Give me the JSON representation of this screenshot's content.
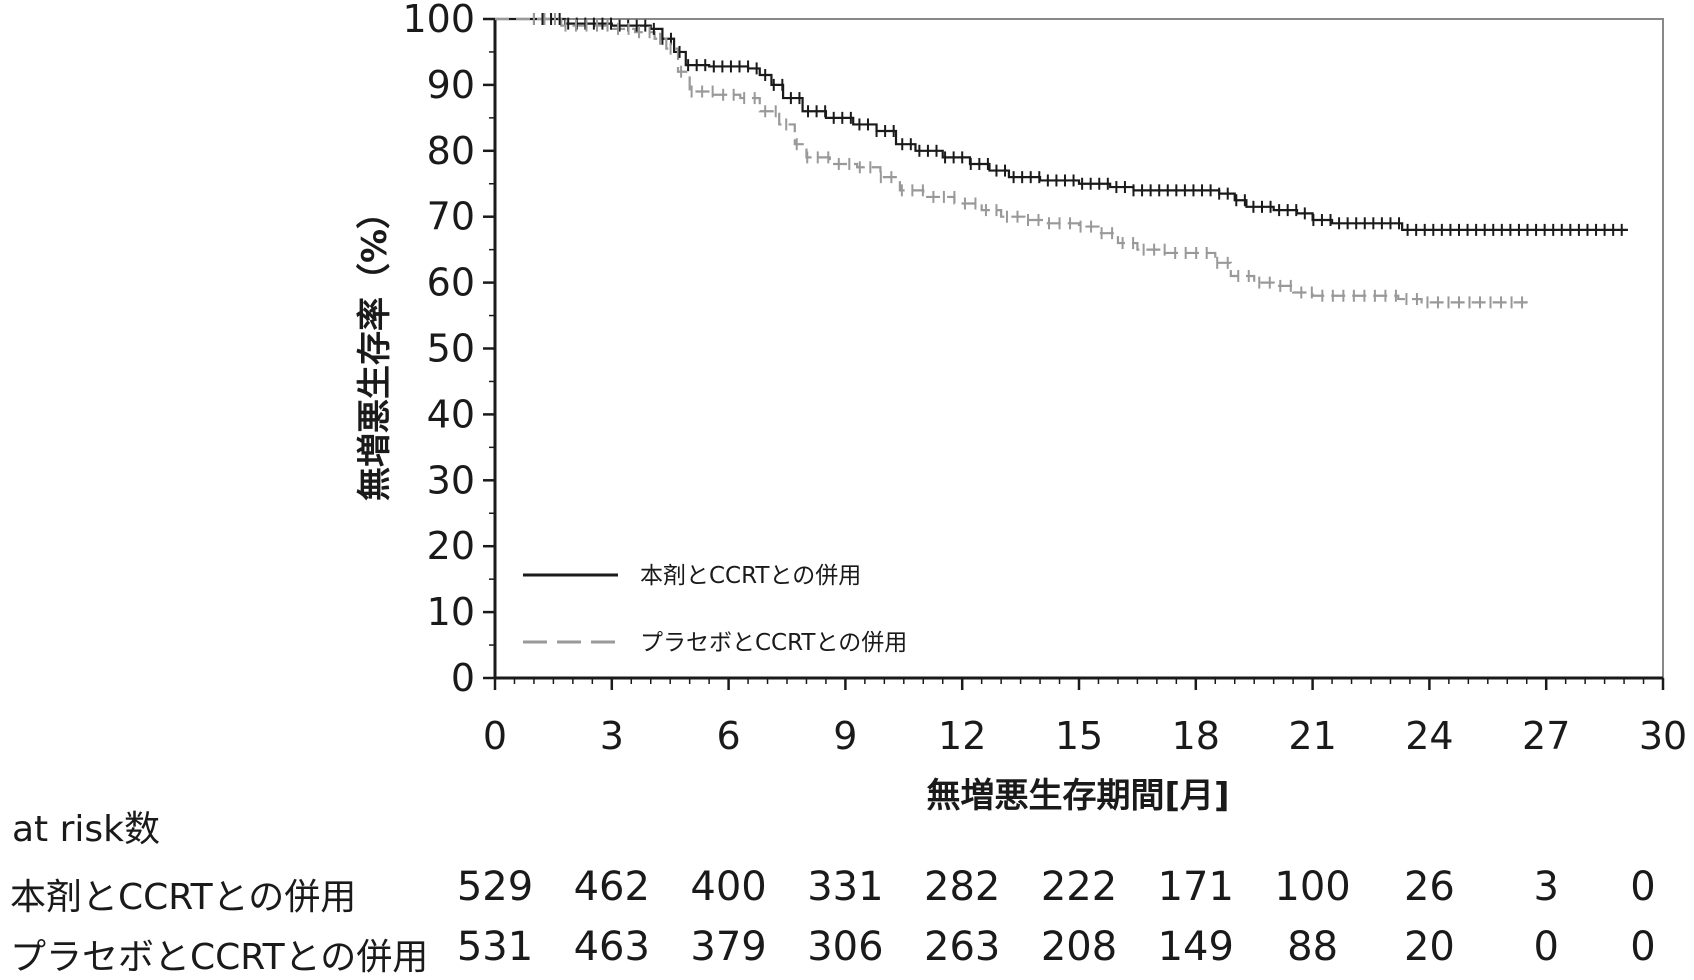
{
  "chart_data": {
    "type": "line",
    "title": "",
    "xlabel": "無増悪生存期間[月]",
    "ylabel": "無増悪生存率（%）",
    "xlim": [
      0,
      30
    ],
    "ylim": [
      0,
      100
    ],
    "x_ticks": [
      "0",
      "3",
      "6",
      "9",
      "12",
      "15",
      "18",
      "21",
      "24",
      "27",
      "30"
    ],
    "y_ticks": [
      "0",
      "10",
      "20",
      "30",
      "40",
      "50",
      "60",
      "70",
      "80",
      "90",
      "100"
    ],
    "grid": false,
    "legend_position": "bottom-left",
    "series": [
      {
        "name": "本剤とCCRTとの併用",
        "color": "#1a1a1a",
        "style": "solid",
        "points": [
          [
            0,
            100
          ],
          [
            1.2,
            100
          ],
          [
            1.8,
            99.3
          ],
          [
            3.0,
            99
          ],
          [
            4.0,
            98.5
          ],
          [
            4.3,
            97
          ],
          [
            4.6,
            95
          ],
          [
            4.9,
            93
          ],
          [
            5.5,
            92.8
          ],
          [
            6.5,
            92.5
          ],
          [
            6.8,
            91.5
          ],
          [
            7.1,
            90
          ],
          [
            7.4,
            88
          ],
          [
            7.9,
            86
          ],
          [
            8.5,
            85
          ],
          [
            9.2,
            84
          ],
          [
            9.8,
            83
          ],
          [
            10.3,
            81
          ],
          [
            10.8,
            80
          ],
          [
            11.5,
            79
          ],
          [
            12.2,
            78
          ],
          [
            12.7,
            77
          ],
          [
            13.2,
            76
          ],
          [
            14.0,
            75.5
          ],
          [
            15.0,
            75
          ],
          [
            15.8,
            74.5
          ],
          [
            16.4,
            74
          ],
          [
            17.0,
            74
          ],
          [
            18.0,
            74
          ],
          [
            18.6,
            73.5
          ],
          [
            19.0,
            72.5
          ],
          [
            19.3,
            71.5
          ],
          [
            20.0,
            71
          ],
          [
            20.6,
            70.5
          ],
          [
            21.0,
            69.5
          ],
          [
            21.5,
            69
          ],
          [
            22.0,
            69
          ],
          [
            22.8,
            69
          ],
          [
            23.3,
            68
          ],
          [
            24.0,
            68
          ],
          [
            26.0,
            68
          ],
          [
            29.1,
            68
          ]
        ]
      },
      {
        "name": "プラセボとCCRTとの併用",
        "color": "#999999",
        "style": "dashed",
        "points": [
          [
            0,
            100
          ],
          [
            1.0,
            100
          ],
          [
            1.7,
            99
          ],
          [
            3.0,
            98.5
          ],
          [
            3.6,
            98
          ],
          [
            4.1,
            97
          ],
          [
            4.4,
            95.5
          ],
          [
            4.7,
            92
          ],
          [
            5.0,
            89
          ],
          [
            5.6,
            88.5
          ],
          [
            6.3,
            88
          ],
          [
            6.8,
            86
          ],
          [
            7.3,
            84
          ],
          [
            7.7,
            81
          ],
          [
            8.0,
            79
          ],
          [
            8.6,
            78
          ],
          [
            9.3,
            77.5
          ],
          [
            9.9,
            76
          ],
          [
            10.4,
            74
          ],
          [
            11.0,
            73
          ],
          [
            11.8,
            72
          ],
          [
            12.5,
            71
          ],
          [
            13.0,
            70
          ],
          [
            13.6,
            69.5
          ],
          [
            14.2,
            69
          ],
          [
            15.0,
            68.5
          ],
          [
            15.5,
            67.5
          ],
          [
            16.0,
            66
          ],
          [
            16.5,
            65
          ],
          [
            17.2,
            64.5
          ],
          [
            18.0,
            64.5
          ],
          [
            18.5,
            63
          ],
          [
            18.9,
            61
          ],
          [
            19.5,
            60
          ],
          [
            20.0,
            59.5
          ],
          [
            20.5,
            58.5
          ],
          [
            21.0,
            58
          ],
          [
            22.0,
            58
          ],
          [
            23.2,
            57.5
          ],
          [
            23.8,
            57
          ],
          [
            25.0,
            57
          ],
          [
            26.6,
            57
          ]
        ]
      }
    ]
  },
  "at_risk": {
    "title": "at risk数",
    "rows": [
      {
        "label": "本剤とCCRTとの併用",
        "values": [
          "529",
          "462",
          "400",
          "331",
          "282",
          "222",
          "171",
          "100",
          "26",
          "3",
          "0"
        ]
      },
      {
        "label": "プラセボとCCRTとの併用",
        "values": [
          "531",
          "463",
          "379",
          "306",
          "263",
          "208",
          "149",
          "88",
          "20",
          "0",
          "0"
        ]
      }
    ]
  }
}
